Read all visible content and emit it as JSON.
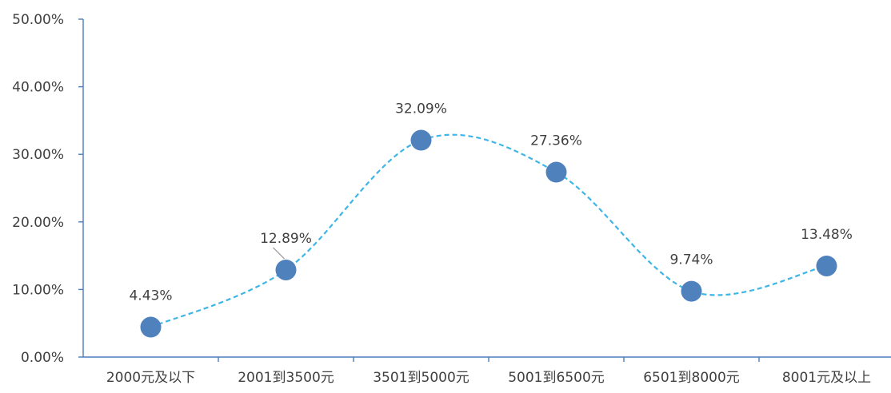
{
  "chart_data": {
    "type": "line",
    "title": "",
    "xlabel": "",
    "ylabel": "",
    "categories": [
      "2000元及以下",
      "2001到3500元",
      "3501到5000元",
      "5001到6500元",
      "6501到8000元",
      "8001元及以上"
    ],
    "series": [
      {
        "values": [
          4.43,
          12.89,
          32.09,
          27.36,
          9.74,
          13.48
        ],
        "labels": [
          "4.43%",
          "12.89%",
          "32.09%",
          "27.36%",
          "9.74%",
          "13.48%"
        ]
      }
    ],
    "ylim": [
      0,
      50
    ],
    "yticks": [
      0,
      10,
      20,
      30,
      40,
      50
    ],
    "ytick_labels": [
      "0.00%",
      "10.00%",
      "20.00%",
      "30.00%",
      "40.00%",
      "50.00%"
    ],
    "smooth": true,
    "line_style": "dashed",
    "grid": false,
    "legend": "none",
    "colors": {
      "line": "#3db5e6",
      "marker": "#4f81bd",
      "axis": "#4a7ebb",
      "text": "#404040"
    }
  }
}
